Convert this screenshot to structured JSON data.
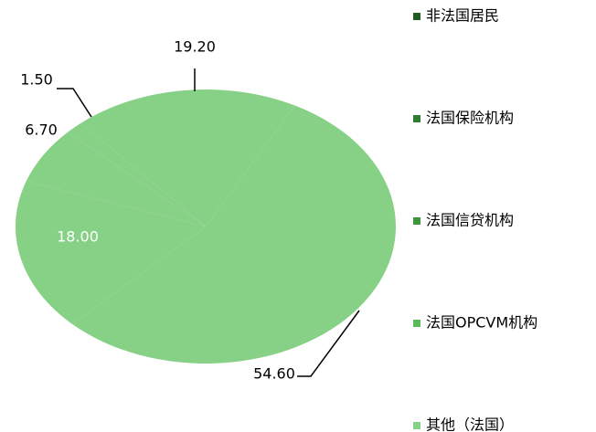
{
  "chart_data": {
    "type": "pie",
    "categories": [
      "非法国居民",
      "法国保险机构",
      "法国信贷机构",
      "法国OPCVM机构",
      "其他（法国）"
    ],
    "values": [
      19.2,
      1.5,
      6.7,
      18.0,
      54.6
    ],
    "value_labels": [
      "19.20",
      "1.50",
      "6.70",
      "18.00",
      "54.60"
    ],
    "colors": [
      "#1f5a1f",
      "#2e7d32",
      "#3f943f",
      "#5cba5c",
      "#86d186"
    ],
    "slice_color": "#86d186",
    "legend": "right"
  }
}
